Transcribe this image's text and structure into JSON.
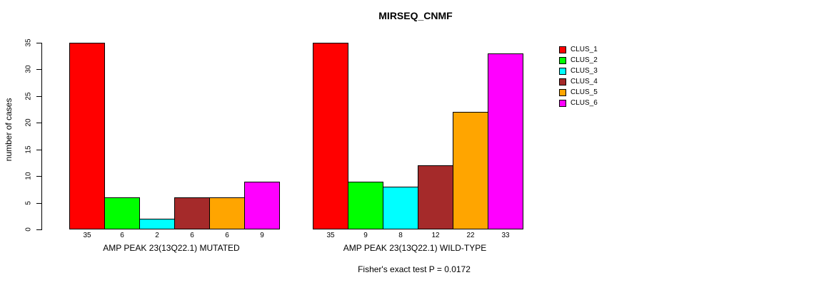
{
  "title": "MIRSEQ_CNMF",
  "y_axis": {
    "label": "number of cases",
    "ticks": [
      "0",
      "5",
      "10",
      "15",
      "20",
      "25",
      "30",
      "35"
    ]
  },
  "footnote": "Fisher's exact test P = 0.0172",
  "chart_data": {
    "type": "bar",
    "title": "MIRSEQ_CNMF",
    "ylabel": "number of cases",
    "ylim": [
      0,
      35
    ],
    "grid": false,
    "legend_position": "top-right",
    "legend": [
      {
        "label": "CLUS_1",
        "color": "#FF0000"
      },
      {
        "label": "CLUS_2",
        "color": "#00FF00"
      },
      {
        "label": "CLUS_3",
        "color": "#00FFFF"
      },
      {
        "label": "CLUS_4",
        "color": "#A52A2A"
      },
      {
        "label": "CLUS_5",
        "color": "#FFA500"
      },
      {
        "label": "CLUS_6",
        "color": "#FF00FF"
      }
    ],
    "panels": [
      {
        "xlabel": "AMP PEAK 23(13Q22.1) MUTATED",
        "categories": [
          "CLUS_1",
          "CLUS_2",
          "CLUS_3",
          "CLUS_4",
          "CLUS_5",
          "CLUS_6"
        ],
        "values": [
          35,
          6,
          2,
          6,
          6,
          9
        ]
      },
      {
        "xlabel": "AMP PEAK 23(13Q22.1) WILD-TYPE",
        "categories": [
          "CLUS_1",
          "CLUS_2",
          "CLUS_3",
          "CLUS_4",
          "CLUS_5",
          "CLUS_6"
        ],
        "values": [
          35,
          9,
          8,
          12,
          22,
          33
        ]
      }
    ],
    "annotation": "Fisher's exact test P = 0.0172"
  }
}
